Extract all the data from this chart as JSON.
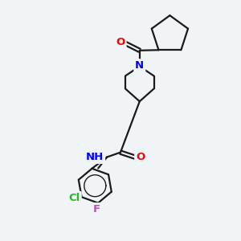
{
  "bg_color": "#f0f4f7",
  "bond_color": "#1a1a1a",
  "atom_colors": {
    "O": "#ff0000",
    "N": "#0000ff",
    "Cl": "#2db32d",
    "F": "#cc44cc",
    "H": "#666666",
    "C": "#1a1a1a"
  },
  "lw": 1.6
}
